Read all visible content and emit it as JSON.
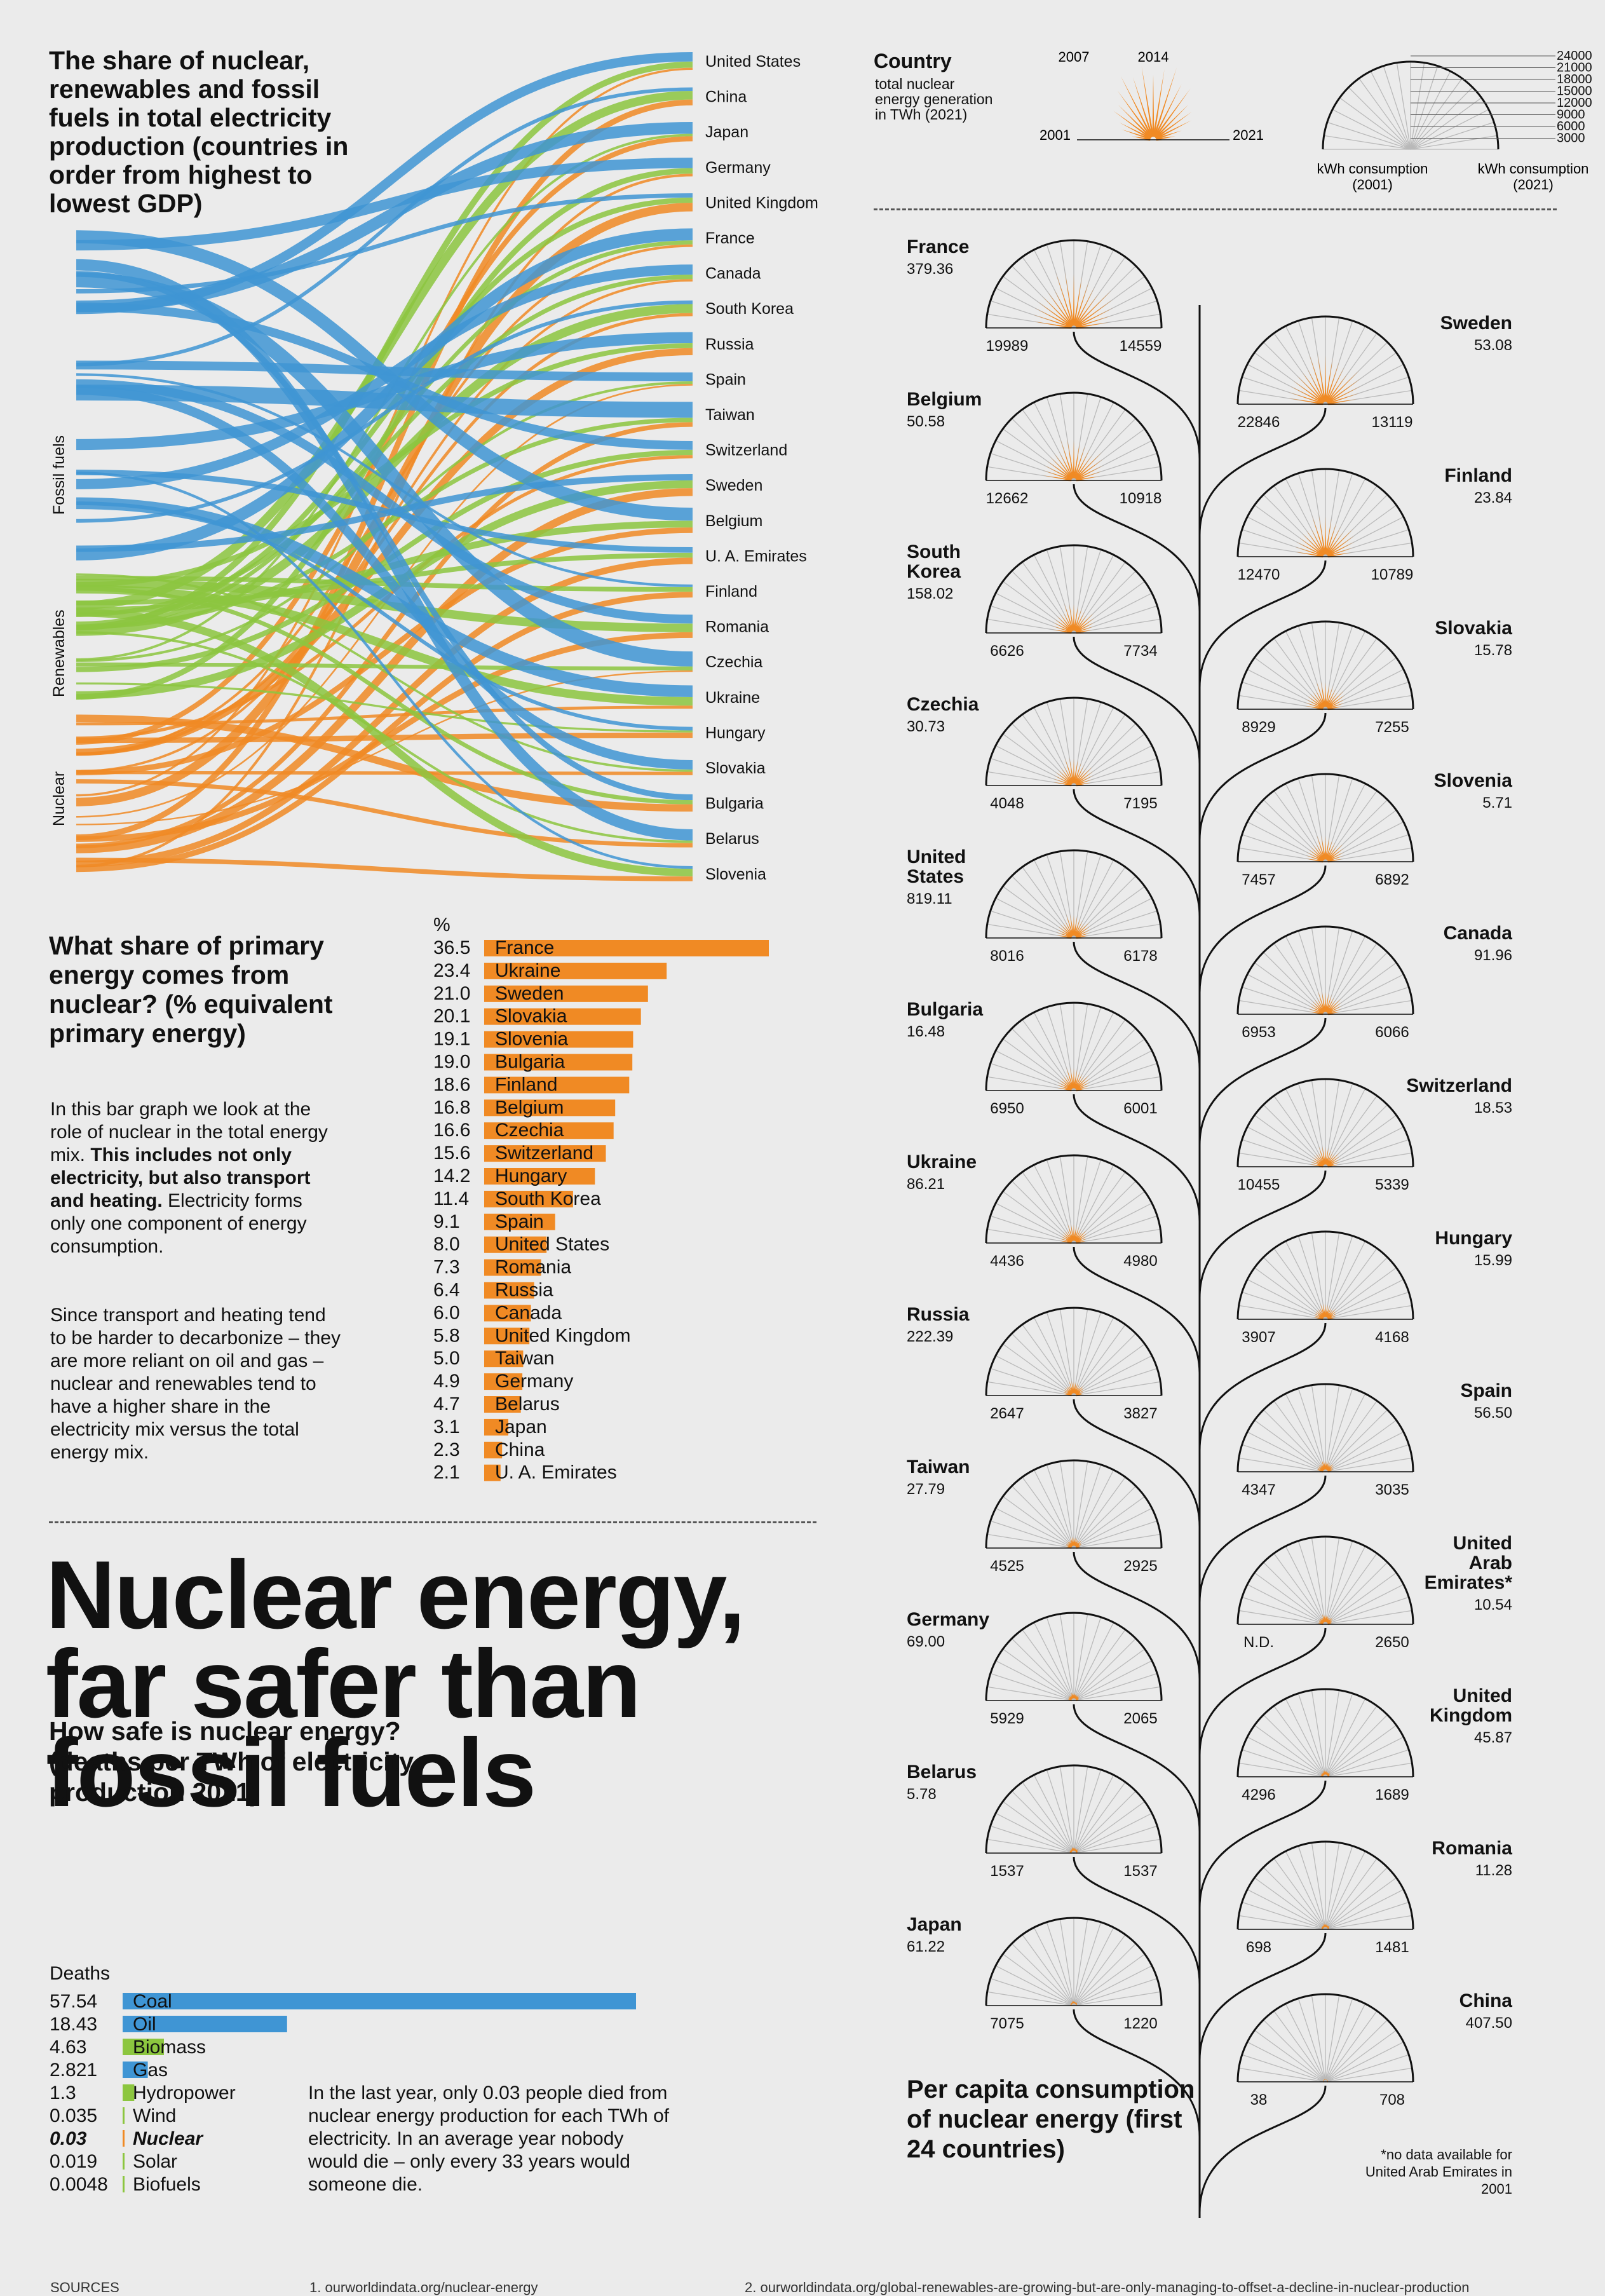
{
  "sankey": {
    "title": "The share of nuclear, renewables and fossil fuels in total electricity production (countries in order from highest to lowest GDP)",
    "sources": [
      "Fossil fuels",
      "Renewables",
      "Nuclear"
    ],
    "countries": [
      "United States",
      "China",
      "Japan",
      "Germany",
      "United Kingdom",
      "France",
      "Canada",
      "South Korea",
      "Russia",
      "Spain",
      "Taiwan",
      "Switzerland",
      "Sweden",
      "Belgium",
      "U. A. Emirates",
      "Finland",
      "Romania",
      "Czechia",
      "Ukraine",
      "Hungary",
      "Slovakia",
      "Bulgaria",
      "Belarus",
      "Slovenia"
    ]
  },
  "primary": {
    "title": "What share of primary energy comes from nuclear? (% equivalent primary energy)",
    "unit": "%",
    "para1_a": "In this bar graph we look at the role of nuclear in the total energy mix. ",
    "para1_b": "This includes not only electricity, but also transport and heating.",
    "para1_c": " Electricity forms only one component of energy consumption.",
    "para2": "Since transport and heating tend to be harder to decarbonize – they are more reliant on oil and gas – nuclear and renewables tend to have a higher share in the electricity mix versus the total energy mix."
  },
  "headline": {
    "line1": "Nuclear energy,",
    "line2": "far safer than",
    "line3": "fossil fuels",
    "sub": "How safe is nuclear energy? (deaths per TWh of electricity production 2021)"
  },
  "deaths": {
    "label": "Deaths",
    "note": "In the last year, only 0.03 people died from nuclear energy production for each TWh of electricity. In an average year nobody would die – only every 33 years would someone die."
  },
  "legend": {
    "country": "Country",
    "generation": "total nuclear energy generation in TWh (2021)",
    "y2001": "2001",
    "y2007": "2007",
    "y2014": "2014",
    "y2021": "2021",
    "scale": [
      "24000",
      "21000",
      "18000",
      "15000",
      "12000",
      "9000",
      "6000",
      "3000"
    ],
    "kwh2001": "kWh consumption (2001)",
    "kwh2021": "kWh consumption (2021)"
  },
  "percapita": {
    "title": "Per capita consumption of nuclear energy (first 24 countries)",
    "footnote": "*no data available for United Arab Emirates in 2001"
  },
  "sources_bar": {
    "label": "SOURCES",
    "s1": "1. ourworldindata.org/nuclear-energy",
    "s2": "2. ourworldindata.org/global-renewables-are-growing-but-are-only-managing-to-offset-a-decline-in-nuclear-production"
  },
  "colors": {
    "nuclear": "#f08a24",
    "renewables": "#8cc63f",
    "fossil": "#3f95d4",
    "background": "#ebebeb"
  },
  "chart_data": [
    {
      "type": "bar",
      "title": "What share of primary energy comes from nuclear? (% equivalent primary energy)",
      "unit": "%",
      "categories": [
        "France",
        "Ukraine",
        "Sweden",
        "Slovakia",
        "Slovenia",
        "Bulgaria",
        "Finland",
        "Belgium",
        "Czechia",
        "Switzerland",
        "Hungary",
        "South Korea",
        "Spain",
        "United States",
        "Romania",
        "Russia",
        "Canada",
        "United Kingdom",
        "Taiwan",
        "Germany",
        "Belarus",
        "Japan",
        "China",
        "U. A. Emirates"
      ],
      "values": [
        "36.5",
        "23.4",
        "21.0",
        "20.1",
        "19.1",
        "19.0",
        "18.6",
        "16.8",
        "16.6",
        "15.6",
        "14.2",
        "11.4",
        "9.1",
        "8.0",
        "7.3",
        "6.4",
        "6.0",
        "5.8",
        "5.0",
        "4.9",
        "4.7",
        "3.1",
        "2.3",
        "2.1"
      ],
      "xlim": [
        0,
        37
      ]
    },
    {
      "type": "bar",
      "title": "How safe is nuclear energy? (deaths per TWh of electricity production 2021)",
      "ylabel": "Deaths",
      "categories": [
        "Coal",
        "Oil",
        "Biomass",
        "Gas",
        "Hydropower",
        "Wind",
        "Nuclear",
        "Solar",
        "Biofuels"
      ],
      "values": [
        "57.54",
        "18.43",
        "4.63",
        "2.821",
        "1.3",
        "0.035",
        "0.03",
        "0.019",
        "0.0048"
      ],
      "colors": [
        "#3f95d4",
        "#3f95d4",
        "#8cc63f",
        "#3f95d4",
        "#8cc63f",
        "#8cc63f",
        "#f08a24",
        "#8cc63f",
        "#8cc63f"
      ]
    },
    {
      "type": "other",
      "title": "Per capita consumption of nuclear energy (first 24 countries)",
      "columns": [
        "country",
        "generation_twh_2021",
        "kwh_2001",
        "kwh_2021"
      ],
      "rows": [
        {
          "country": "France",
          "gen": "379.36",
          "k2001": "19989",
          "k2021": "14559",
          "side": "L"
        },
        {
          "country": "Sweden",
          "gen": "53.08",
          "k2001": "22846",
          "k2021": "13119",
          "side": "R"
        },
        {
          "country": "Belgium",
          "gen": "50.58",
          "k2001": "12662",
          "k2021": "10918",
          "side": "L"
        },
        {
          "country": "Finland",
          "gen": "23.84",
          "k2001": "12470",
          "k2021": "10789",
          "side": "R"
        },
        {
          "country": "South Korea",
          "gen": "158.02",
          "k2001": "6626",
          "k2021": "7734",
          "side": "L"
        },
        {
          "country": "Slovakia",
          "gen": "15.78",
          "k2001": "8929",
          "k2021": "7255",
          "side": "R"
        },
        {
          "country": "Czechia",
          "gen": "30.73",
          "k2001": "4048",
          "k2021": "7195",
          "side": "L"
        },
        {
          "country": "Slovenia",
          "gen": "5.71",
          "k2001": "7457",
          "k2021": "6892",
          "side": "R"
        },
        {
          "country": "United States",
          "gen": "819.11",
          "k2001": "8016",
          "k2021": "6178",
          "side": "L"
        },
        {
          "country": "Canada",
          "gen": "91.96",
          "k2001": "6953",
          "k2021": "6066",
          "side": "R"
        },
        {
          "country": "Bulgaria",
          "gen": "16.48",
          "k2001": "6950",
          "k2021": "6001",
          "side": "L"
        },
        {
          "country": "Switzerland",
          "gen": "18.53",
          "k2001": "10455",
          "k2021": "5339",
          "side": "R"
        },
        {
          "country": "Ukraine",
          "gen": "86.21",
          "k2001": "4436",
          "k2021": "4980",
          "side": "L"
        },
        {
          "country": "Hungary",
          "gen": "15.99",
          "k2001": "3907",
          "k2021": "4168",
          "side": "R"
        },
        {
          "country": "Russia",
          "gen": "222.39",
          "k2001": "2647",
          "k2021": "3827",
          "side": "L"
        },
        {
          "country": "Spain",
          "gen": "56.50",
          "k2001": "4347",
          "k2021": "3035",
          "side": "R"
        },
        {
          "country": "Taiwan",
          "gen": "27.79",
          "k2001": "4525",
          "k2021": "2925",
          "side": "L"
        },
        {
          "country": "United Arab Emirates*",
          "gen": "10.54",
          "k2001": "N.D.",
          "k2021": "2650",
          "side": "R"
        },
        {
          "country": "Germany",
          "gen": "69.00",
          "k2001": "5929",
          "k2021": "2065",
          "side": "L"
        },
        {
          "country": "United Kingdom",
          "gen": "45.87",
          "k2001": "4296",
          "k2021": "1689",
          "side": "R"
        },
        {
          "country": "Belarus",
          "gen": "5.78",
          "k2001": "1537",
          "k2021": "1537",
          "side": "L"
        },
        {
          "country": "Romania",
          "gen": "11.28",
          "k2001": "698",
          "k2021": "1481",
          "side": "R"
        },
        {
          "country": "Japan",
          "gen": "61.22",
          "k2001": "7075",
          "k2021": "1220",
          "side": "L"
        },
        {
          "country": "China",
          "gen": "407.50",
          "k2001": "38",
          "k2021": "708",
          "side": "R"
        }
      ]
    }
  ]
}
